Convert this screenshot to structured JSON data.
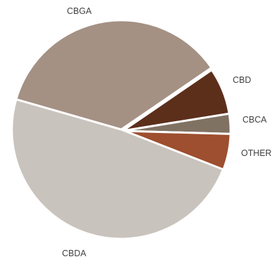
{
  "chart_data": {
    "type": "pie",
    "title": "",
    "legend": "none",
    "labels_shown": "category names outside slices",
    "slices": [
      {
        "label": "CBGA",
        "value": 36.0,
        "color": "#a49184"
      },
      {
        "label": "CBD",
        "value": 7.0,
        "color": "#5c2f1b"
      },
      {
        "label": "CBCA",
        "value": 3.0,
        "color": "#807263"
      },
      {
        "label": "OTHER",
        "value": 5.5,
        "color": "#9d4f2f"
      },
      {
        "label": "CBDA",
        "value": 48.5,
        "color": "#c9c3bd"
      }
    ]
  }
}
